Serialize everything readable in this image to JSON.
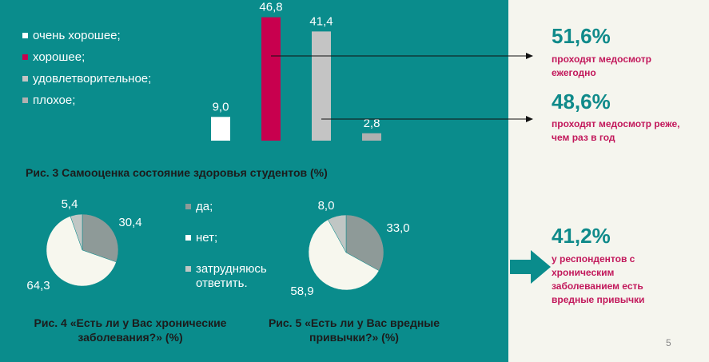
{
  "chart_data": [
    {
      "type": "bar",
      "title": "Рис. 3 Самооценка состояние здоровья студентов (%)",
      "categories": [
        "очень хорошее;",
        "хорошее;",
        "удовлетворительное;",
        "плохое;"
      ],
      "values": [
        9.0,
        46.8,
        41.4,
        2.8
      ],
      "value_labels": [
        "9,0",
        "46,8",
        "41,4",
        "2,8"
      ],
      "colors": [
        "#ffffff",
        "#c8004e",
        "#c4c4c4",
        "#b0b0b0"
      ],
      "ylim": [
        0,
        50
      ],
      "legend": "left"
    },
    {
      "type": "pie",
      "title": "Рис. 4 «Есть ли у Вас хронические заболевания?» (%)",
      "categories": [
        "да;",
        "нет;",
        "затрудняюсь ответить."
      ],
      "values": [
        30.4,
        64.3,
        5.4
      ],
      "value_labels": [
        "30,4",
        "64,3",
        "5,4"
      ],
      "colors": [
        "#8e9a98",
        "#f7f7ee",
        "#c0c6c4"
      ]
    },
    {
      "type": "pie",
      "title": "Рис. 5 «Есть ли у Вас вредные привычки?» (%)",
      "categories": [
        "да;",
        "нет;",
        "затрудняюсь ответить."
      ],
      "values": [
        33.0,
        58.9,
        8.0
      ],
      "value_labels": [
        "33,0",
        "58,9",
        "8,0"
      ],
      "colors": [
        "#8e9a98",
        "#f7f7ee",
        "#c0c6c4"
      ]
    }
  ],
  "pie_legend": [
    "да;",
    "нет;",
    "затрудняюсь ответить."
  ],
  "stats": [
    {
      "pct": "51,6%",
      "text": [
        "проходят  медосмотр",
        "ежегодно"
      ]
    },
    {
      "pct": "48,6%",
      "text": [
        "проходят  медосмотр  реже,",
        "чем раз  в  год"
      ]
    },
    {
      "pct": "41,2%",
      "text": [
        "у респондентов  с",
        "хроническим",
        "заболеванием  есть",
        "вредные  привычки"
      ]
    }
  ],
  "colors": {
    "panel": "#0a8c8c",
    "accent_text": "#c2185b",
    "pct_text": "#0f8a8a"
  },
  "page_number": "5"
}
